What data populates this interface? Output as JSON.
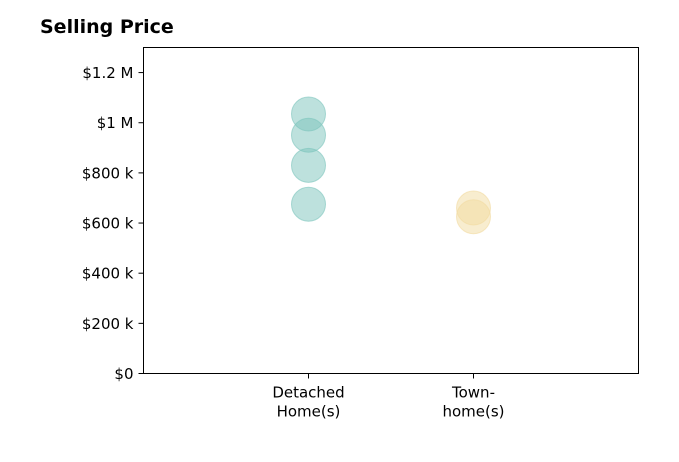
{
  "chart_data": {
    "type": "scatter",
    "title": "Selling Price",
    "xlabel": "",
    "ylabel": "",
    "categories": [
      {
        "lines": [
          "Detached",
          "Home(s)"
        ]
      },
      {
        "lines": [
          "Town-",
          "home(s)"
        ]
      }
    ],
    "y_ticks": [
      {
        "value": 0,
        "label": "$0"
      },
      {
        "value": 200000,
        "label": "$200 k"
      },
      {
        "value": 400000,
        "label": "$400 k"
      },
      {
        "value": 600000,
        "label": "$600 k"
      },
      {
        "value": 800000,
        "label": "$800 k"
      },
      {
        "value": 1000000,
        "label": "$1 M"
      },
      {
        "value": 1200000,
        "label": "$1.2 M"
      }
    ],
    "ylim": [
      0,
      1300000
    ],
    "xlim": [
      -1,
      2
    ],
    "grid": false,
    "series": [
      {
        "category_index": 0,
        "color": "#7cc4bc",
        "values": [
          1035000,
          950000,
          830000,
          675000
        ]
      },
      {
        "category_index": 1,
        "color": "#f2dba0",
        "values": [
          660000,
          625000
        ]
      }
    ]
  }
}
